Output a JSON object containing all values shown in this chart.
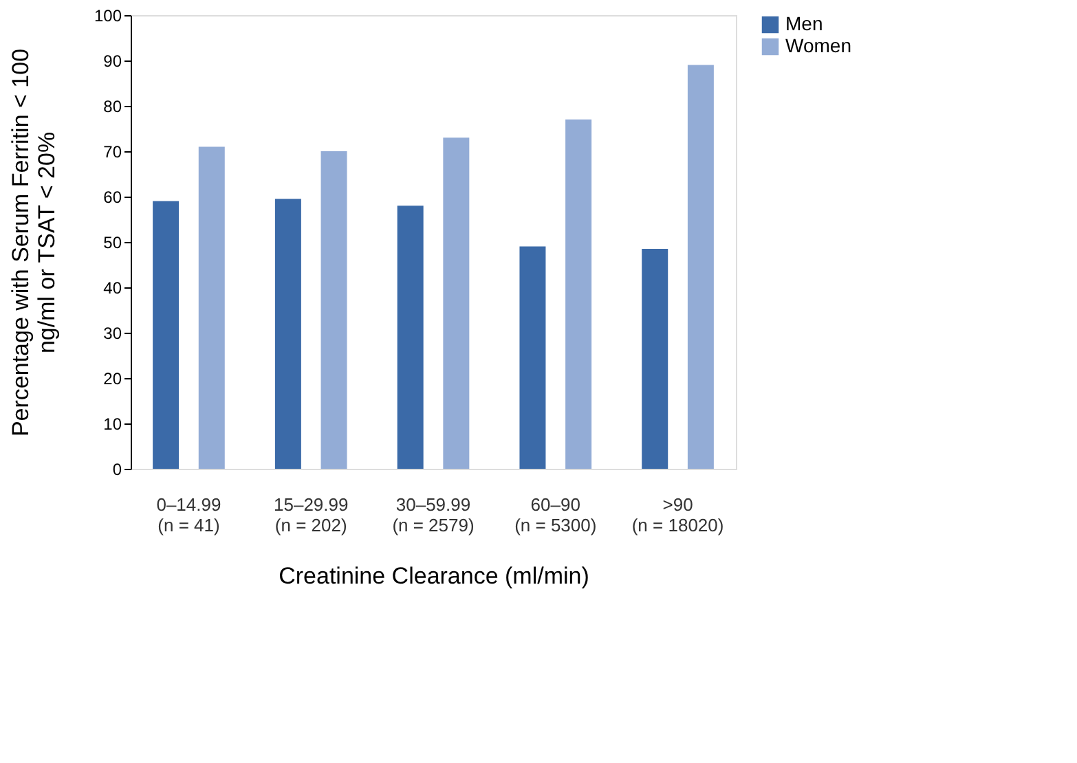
{
  "chart_data": {
    "type": "bar",
    "xlabel": "Creatinine Clearance (ml/min)",
    "ylabel": "Percentage with Serum Ferritin < 100\nng/ml or TSAT < 20%",
    "categories": [
      "0–14.99\n(n = 41)",
      "15–29.99\n(n = 202)",
      "30–59.99\n(n = 2579)",
      "60–90\n(n = 5300)",
      ">90\n(n = 18020)"
    ],
    "series": [
      {
        "name": "Men",
        "color": "#3b6aa8",
        "values": [
          59,
          59.5,
          58,
          49,
          48.5
        ]
      },
      {
        "name": "Women",
        "color": "#93acd6",
        "values": [
          71,
          70,
          73,
          77,
          89
        ]
      }
    ],
    "ylim": [
      0,
      100
    ],
    "yticks": [
      0,
      10,
      20,
      30,
      40,
      50,
      60,
      70,
      80,
      90,
      100
    ],
    "grid": false,
    "legend": "right"
  }
}
